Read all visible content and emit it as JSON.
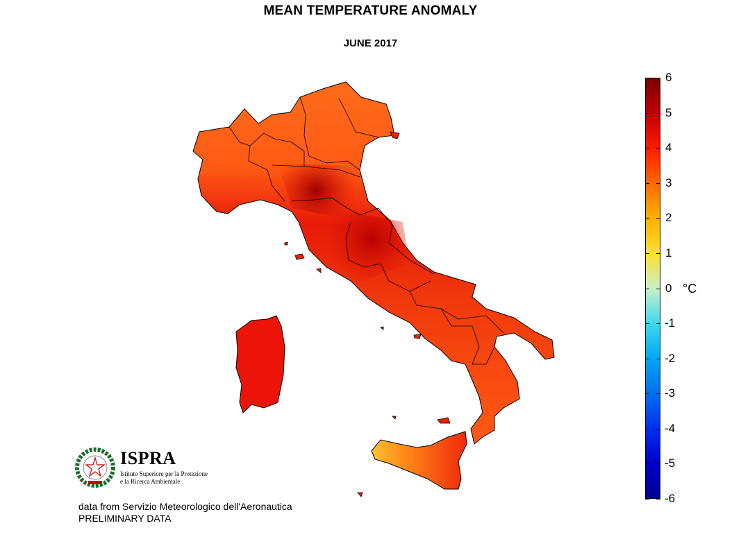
{
  "header": {
    "title": "MEAN TEMPERATURE ANOMALY",
    "subtitle": "JUNE 2017"
  },
  "colorbar": {
    "unit": "°C",
    "ticks": [
      "6",
      "5",
      "4",
      "3",
      "2",
      "1",
      "0",
      "-1",
      "-2",
      "-3",
      "-4",
      "-5",
      "-6"
    ],
    "range": [
      -6,
      6
    ],
    "colors": {
      "c6": "#7a0000",
      "c5": "#c00000",
      "c4": "#ff1a00",
      "c3": "#ff6a00",
      "c2": "#ffb000",
      "c1": "#ffe030",
      "c0": "#c8f0c8",
      "cm1": "#40d8f0",
      "cm2": "#00a8f0",
      "cm3": "#0070f0",
      "cm4": "#0030f0",
      "cm5": "#0000c8",
      "cm6": "#000090"
    }
  },
  "map": {
    "region": "Italy",
    "anomaly_colors": {
      "north": "#ff6a1a",
      "centre": "#e01808",
      "hotspot": "#a00000",
      "south": "#ff4a10",
      "sardinia": "#f01008",
      "sicily_west": "#ffc030",
      "sicily_east": "#f02a0a"
    }
  },
  "logo": {
    "name": "ISPRA",
    "line1": "Istituto Superiore per la Protezione",
    "line2": "e la Ricerca Ambientale"
  },
  "footer": {
    "source": "data from Servizio Meteorologico dell'Aeronautica",
    "note": "PRELIMINARY DATA"
  }
}
